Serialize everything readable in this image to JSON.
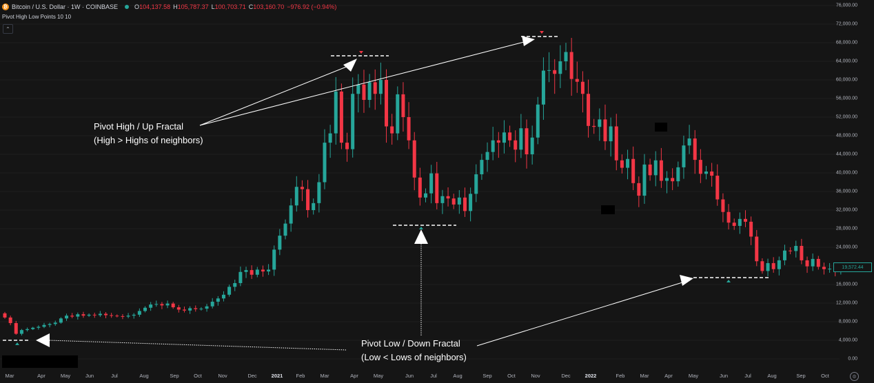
{
  "header": {
    "symbol": "Bitcoin / U.S. Dollar · 1W · COINBASE",
    "logo_glyph": "₿",
    "open_label": "O",
    "open": "104,137.58",
    "high_label": "H",
    "high": "105,787.37",
    "low_label": "L",
    "low": "100,703.71",
    "close_label": "C",
    "close": "103,160.70",
    "change": "−976.92 (−0.94%)"
  },
  "indicator": {
    "label": "Pivot High Low Points 10 10"
  },
  "collapse_glyph": "⌃",
  "price_tag": "19,572.44",
  "settings_glyph": "⚙",
  "annotations": {
    "pivot_high_line1": "Pivot High / Up Fractal",
    "pivot_high_line2": "(High > Highs of neighbors)",
    "pivot_low_line1": "Pivot Low / Down Fractal",
    "pivot_low_line2": "(Low < Lows of neighbors)"
  },
  "colors": {
    "up": "#26a69a",
    "down": "#f23645",
    "background": "#151515",
    "annotation": "#ffffff"
  },
  "chart_data": {
    "type": "candlestick",
    "y_axis_ticks": [
      "76,000.00",
      "72,000.00",
      "68,000.00",
      "64,000.00",
      "60,000.00",
      "56,000.00",
      "52,000.00",
      "48,000.00",
      "44,000.00",
      "40,000.00",
      "36,000.00",
      "32,000.00",
      "28,000.00",
      "24,000.00",
      "20,000.00",
      "16,000.00",
      "12,000.00",
      "8,000.00",
      "4,000.00",
      "0.00"
    ],
    "x_axis_ticks": [
      "Mar",
      "Apr",
      "May",
      "Jun",
      "Jul",
      "Aug",
      "Sep",
      "Oct",
      "Nov",
      "Dec",
      "2021",
      "Feb",
      "Mar",
      "Apr",
      "May",
      "Jun",
      "Jul",
      "Aug",
      "Sep",
      "Oct",
      "Nov",
      "Dec",
      "2022",
      "Feb",
      "Mar",
      "Apr",
      "May",
      "Jun",
      "Jul",
      "Aug",
      "Sep",
      "Oct"
    ],
    "ylim": [
      0,
      76000
    ],
    "weekly_closes": [
      8900,
      7700,
      5400,
      6200,
      6400,
      6700,
      6900,
      7300,
      7500,
      7800,
      8700,
      9300,
      9100,
      9600,
      9300,
      9500,
      9400,
      9700,
      9400,
      9300,
      9200,
      9100,
      9300,
      9500,
      10300,
      11000,
      11700,
      11800,
      11500,
      11900,
      11100,
      10600,
      10400,
      10900,
      10700,
      10800,
      11300,
      12300,
      13000,
      13800,
      15500,
      16300,
      18700,
      19100,
      18100,
      19200,
      18800,
      19200,
      23500,
      26500,
      29100,
      33000,
      37000,
      36500,
      32000,
      33500,
      38000,
      46500,
      48500,
      57500,
      46500,
      45100,
      57000,
      59000,
      55700,
      59500,
      57000,
      60000,
      50000,
      48500,
      56900,
      52000,
      47000,
      39000,
      34700,
      35600,
      39900,
      33500,
      35000,
      34500,
      33200,
      34700,
      31800,
      35500,
      39700,
      42800,
      44500,
      47000,
      46500,
      48700,
      47000,
      45000,
      49600,
      44000,
      47600,
      54700,
      62000,
      62100,
      61300,
      64000,
      66000,
      60200,
      59600,
      57000,
      50100,
      49900,
      51500,
      46800,
      50000,
      42700,
      41100,
      43000,
      37800,
      35100,
      41800,
      39500,
      42700,
      38300,
      38900,
      38200,
      41200,
      45900,
      47400,
      42800,
      39800,
      40300,
      39400,
      34300,
      31600,
      29300,
      28600,
      30100,
      29500,
      26300,
      21000,
      18900,
      20600,
      19300,
      21200,
      23300,
      23200,
      24300,
      21200,
      19900,
      21500,
      19800,
      19300,
      19400,
      19100,
      19572
    ]
  }
}
